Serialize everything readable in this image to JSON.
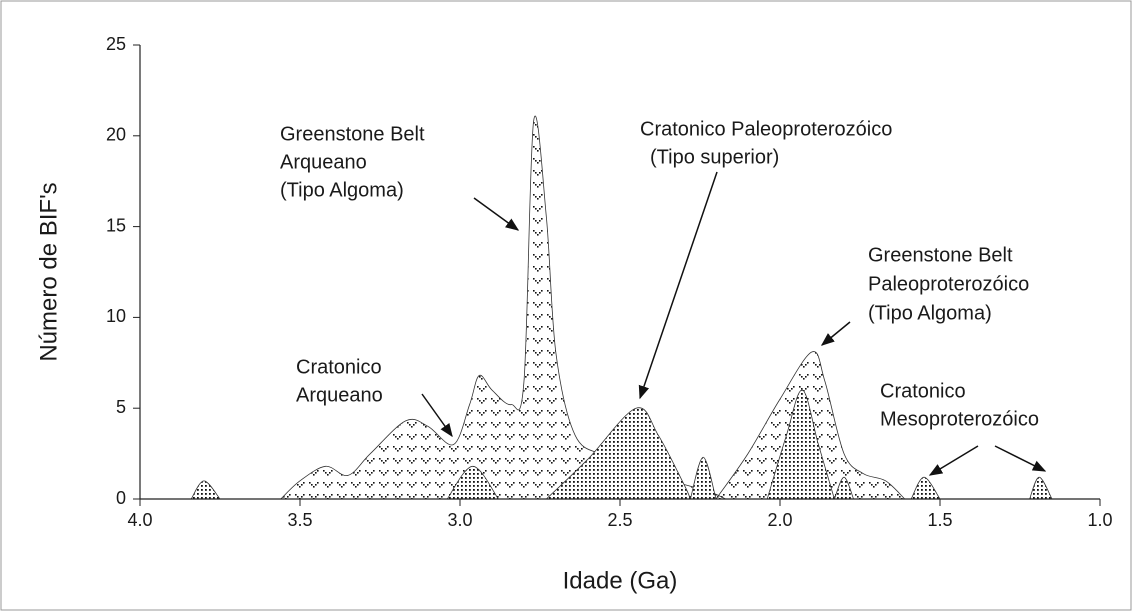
{
  "chart_data": {
    "type": "area",
    "x_label": "Idade (Ga)",
    "y_label": "Número de BIF's",
    "xlim": [
      4.0,
      1.0
    ],
    "ylim": [
      0,
      25
    ],
    "xticks": [
      {
        "value": 4.0,
        "label": "4.0"
      },
      {
        "value": 3.5,
        "label": "3.5"
      },
      {
        "value": 3.0,
        "label": "3.0"
      },
      {
        "value": 2.5,
        "label": "2.5"
      },
      {
        "value": 2.0,
        "label": "2.0"
      },
      {
        "value": 1.5,
        "label": "1.5"
      },
      {
        "value": 1.0,
        "label": "1.0"
      }
    ],
    "yticks": [
      0,
      5,
      10,
      15,
      20,
      25
    ],
    "series": [
      {
        "pattern": "chevron",
        "x": [
          3.56,
          3.5,
          3.42,
          3.35,
          3.28,
          3.17,
          3.1,
          3.02,
          2.97,
          2.94,
          2.9,
          2.84,
          2.8,
          2.77,
          2.73,
          2.7,
          2.64,
          2.55,
          2.45,
          2.32,
          2.22,
          2.17,
          null,
          2.2,
          2.1,
          2.0,
          1.9,
          1.86,
          1.8,
          1.74,
          1.67,
          1.61
        ],
        "values": [
          0,
          1,
          1.8,
          1.3,
          2.5,
          4.3,
          4.0,
          3.0,
          5.2,
          6.8,
          6.0,
          5.2,
          6.5,
          20.8,
          15.5,
          8.0,
          3.5,
          2.4,
          1.6,
          0.9,
          0.4,
          0,
          null,
          0,
          2.5,
          5.5,
          8.1,
          6.5,
          2.5,
          1.4,
          1.0,
          0
        ]
      },
      {
        "pattern": "dots",
        "x": [
          3.84,
          3.8,
          3.75,
          null,
          3.04,
          2.96,
          2.88,
          null,
          2.73,
          2.6,
          2.45,
          2.38,
          2.3,
          2.28,
          null,
          2.28,
          2.24,
          2.2,
          null,
          2.04,
          1.98,
          1.93,
          1.88,
          1.83,
          null,
          1.83,
          1.8,
          1.77,
          null,
          1.59,
          1.55,
          1.5,
          null,
          1.22,
          1.19,
          1.15
        ],
        "values": [
          0,
          1,
          0,
          null,
          0,
          1.8,
          0,
          null,
          0,
          2.2,
          5.0,
          3.5,
          0.8,
          0,
          null,
          0,
          2.3,
          0,
          null,
          0,
          3.5,
          6.0,
          3.0,
          0,
          null,
          0,
          1.2,
          0,
          null,
          0,
          1.2,
          0,
          null,
          0,
          1.2,
          0
        ]
      }
    ],
    "annotations": [
      {
        "lines": [
          "Greenstone Belt",
          "Arqueano",
          "(Tipo Algoma)"
        ]
      },
      {
        "lines": [
          "Cratonico Paleoproterozóico",
          "(Tipo superior)"
        ]
      },
      {
        "lines": [
          "Greenstone Belt",
          "Paleoproterozóico",
          "(Tipo Algoma)"
        ]
      },
      {
        "lines": [
          "Cratonico",
          "Arqueano"
        ]
      },
      {
        "lines": [
          "Cratonico",
          "Mesoproterozóico"
        ]
      }
    ]
  }
}
